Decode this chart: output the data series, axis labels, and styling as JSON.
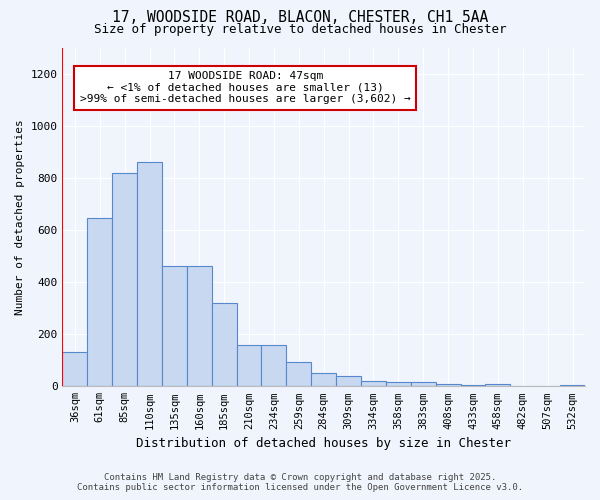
{
  "title1": "17, WOODSIDE ROAD, BLACON, CHESTER, CH1 5AA",
  "title2": "Size of property relative to detached houses in Chester",
  "xlabel": "Distribution of detached houses by size in Chester",
  "ylabel": "Number of detached properties",
  "bar_labels": [
    "36sqm",
    "61sqm",
    "85sqm",
    "110sqm",
    "135sqm",
    "160sqm",
    "185sqm",
    "210sqm",
    "234sqm",
    "259sqm",
    "284sqm",
    "309sqm",
    "334sqm",
    "358sqm",
    "383sqm",
    "408sqm",
    "433sqm",
    "458sqm",
    "482sqm",
    "507sqm",
    "532sqm"
  ],
  "bar_heights": [
    130,
    645,
    820,
    860,
    460,
    460,
    320,
    160,
    160,
    95,
    50,
    40,
    20,
    15,
    15,
    10,
    5,
    10,
    0,
    0,
    5
  ],
  "bar_color": "#c8d8f0",
  "bar_edge_color": "#5588cc",
  "annotation_title": "17 WOODSIDE ROAD: 47sqm",
  "annotation_line1": "← <1% of detached houses are smaller (13)",
  "annotation_line2": ">99% of semi-detached houses are larger (3,602) →",
  "annotation_box_color": "#ffffff",
  "annotation_box_edge": "#cc0000",
  "ylim": [
    0,
    1300
  ],
  "yticks": [
    0,
    200,
    400,
    600,
    800,
    1000,
    1200
  ],
  "background_color": "#f0f4fc",
  "grid_color": "#ffffff",
  "footer1": "Contains HM Land Registry data © Crown copyright and database right 2025.",
  "footer2": "Contains public sector information licensed under the Open Government Licence v3.0."
}
